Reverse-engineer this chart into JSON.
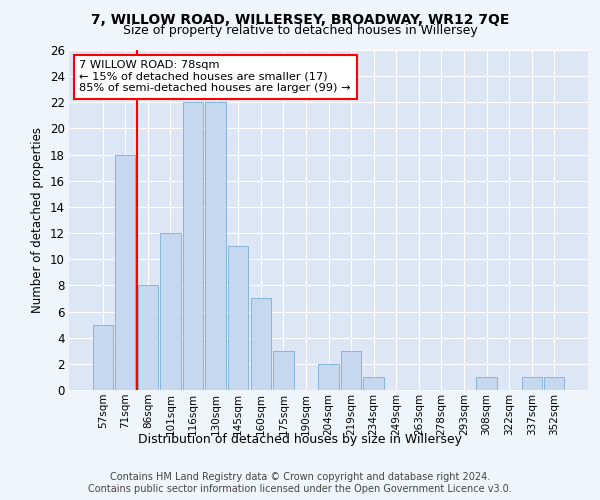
{
  "title1": "7, WILLOW ROAD, WILLERSEY, BROADWAY, WR12 7QE",
  "title2": "Size of property relative to detached houses in Willersey",
  "xlabel": "Distribution of detached houses by size in Willersey",
  "ylabel": "Number of detached properties",
  "categories": [
    "57sqm",
    "71sqm",
    "86sqm",
    "101sqm",
    "116sqm",
    "130sqm",
    "145sqm",
    "160sqm",
    "175sqm",
    "190sqm",
    "204sqm",
    "219sqm",
    "234sqm",
    "249sqm",
    "263sqm",
    "278sqm",
    "293sqm",
    "308sqm",
    "322sqm",
    "337sqm",
    "352sqm"
  ],
  "values": [
    5,
    18,
    8,
    12,
    22,
    22,
    11,
    7,
    3,
    0,
    2,
    3,
    1,
    0,
    0,
    0,
    0,
    1,
    0,
    1,
    1
  ],
  "bar_color": "#c5d8f0",
  "bar_edgecolor": "#7aadd4",
  "ylim": [
    0,
    26
  ],
  "yticks": [
    0,
    2,
    4,
    6,
    8,
    10,
    12,
    14,
    16,
    18,
    20,
    22,
    24,
    26
  ],
  "annotation_box_text": "7 WILLOW ROAD: 78sqm\n← 15% of detached houses are smaller (17)\n85% of semi-detached houses are larger (99) →",
  "vline_x": 1.5,
  "background_color": "#f0f4fb",
  "plot_bg_color": "#dce6f5",
  "grid_color": "#ffffff",
  "footer1": "Contains HM Land Registry data © Crown copyright and database right 2024.",
  "footer2": "Contains public sector information licensed under the Open Government Licence v3.0."
}
